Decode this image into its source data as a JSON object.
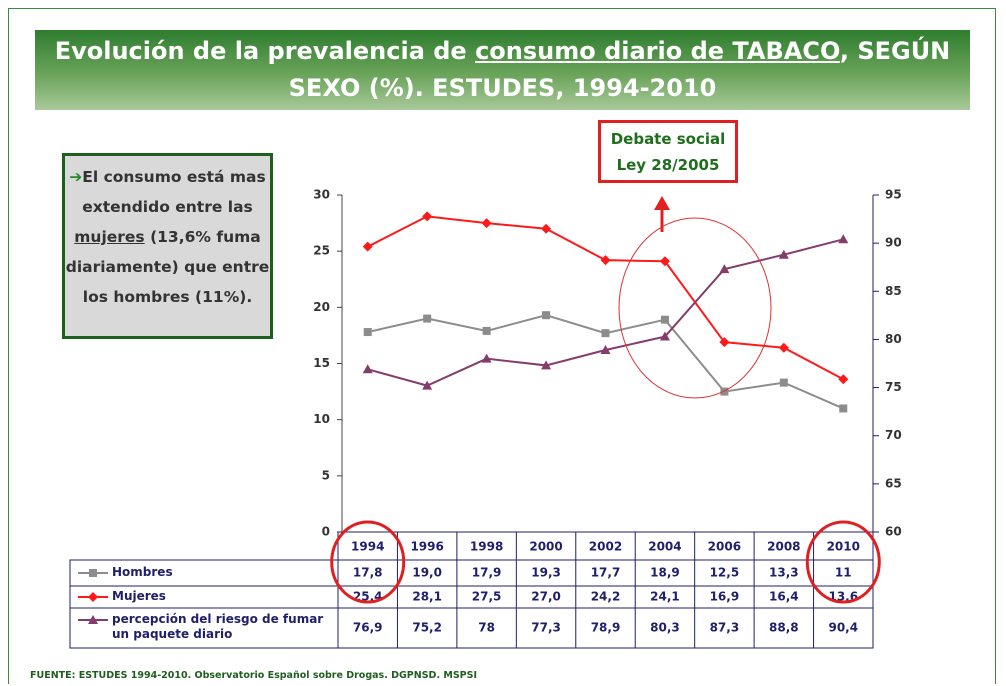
{
  "title_parts": [
    "Evolución de la prevalencia de ",
    "consumo diario de TABACO",
    ", SEGÚN SEXO (%). ESTUDES, 1994-2010"
  ],
  "note_parts": [
    "El consumo está mas extendido entre las ",
    "mujeres",
    " (13,6% fuma diariamente) que entre los hombres (11%)."
  ],
  "debate": [
    "Debate social",
    "Ley 28/2005"
  ],
  "source": "FUENTE: ESTUDES 1994-2010. Observatorio Español sobre Drogas. DGPNSD. MSPSI",
  "chart_data": {
    "type": "line",
    "categories": [
      "1994",
      "1996",
      "1998",
      "2000",
      "2002",
      "2004",
      "2006",
      "2008",
      "2010"
    ],
    "ylim": [
      0,
      30
    ],
    "yticks": [
      0,
      5,
      10,
      15,
      20,
      25,
      30
    ],
    "y2lim": [
      60,
      95
    ],
    "y2ticks": [
      60,
      65,
      70,
      75,
      80,
      85,
      90,
      95
    ],
    "series": [
      {
        "name": "Hombres",
        "color": "#8c8c8c",
        "marker": "square",
        "values": [
          17.8,
          19.0,
          17.9,
          19.3,
          17.7,
          18.9,
          12.5,
          13.3,
          11
        ],
        "value_labels": [
          "17,8",
          "19,0",
          "17,9",
          "19,3",
          "17,7",
          "18,9",
          "12,5",
          "13,3",
          "11"
        ]
      },
      {
        "name": "Mujeres",
        "color": "#ff1a1a",
        "marker": "diamond",
        "values": [
          25.4,
          28.1,
          27.5,
          27.0,
          24.2,
          24.1,
          16.9,
          16.4,
          13.6
        ],
        "value_labels": [
          "25,4",
          "28,1",
          "27,5",
          "27,0",
          "24,2",
          "24,1",
          "16,9",
          "16,4",
          "13,6"
        ]
      },
      {
        "name": "percepción del riesgo de fumar un paquete diario",
        "color": "#843c6c",
        "marker": "triangle",
        "axis": "y2",
        "values": [
          76.9,
          75.2,
          78,
          77.3,
          78.9,
          80.3,
          87.3,
          88.8,
          90.4
        ],
        "value_labels": [
          "76,9",
          "75,2",
          "78",
          "77,3",
          "78,9",
          "80,3",
          "87,3",
          "88,8",
          "90,4"
        ]
      }
    ]
  }
}
